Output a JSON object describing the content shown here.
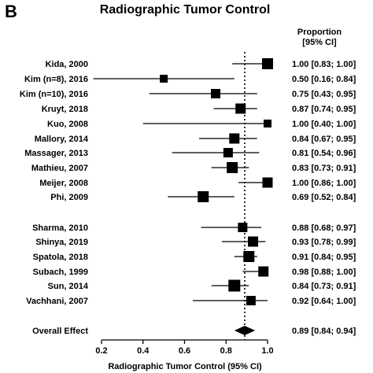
{
  "panel_letter": "B",
  "chart_data": {
    "type": "forest",
    "title": "Radiographic Tumor Control",
    "xlabel": "Radiographic Tumor Control (95% CI)",
    "ci_header": [
      "Proportion",
      "[95% CI]"
    ],
    "xlim": [
      0.2,
      1.0
    ],
    "xticks": [
      0.2,
      0.4,
      0.6,
      0.8,
      1.0
    ],
    "xtick_labels": [
      "0.2",
      "0.4",
      "0.6",
      "0.8",
      "1.0"
    ],
    "reference_line": 0.89,
    "studies": [
      {
        "label": "Kida, 2000",
        "estimate": 1.0,
        "lower": 0.83,
        "upper": 1.0,
        "ci_text": "1.00 [0.83; 1.00]",
        "box": 14
      },
      {
        "label": "Kim (n=8), 2016",
        "estimate": 0.5,
        "lower": 0.16,
        "upper": 0.84,
        "ci_text": "0.50 [0.16; 0.84]",
        "box": 10
      },
      {
        "label": "Kim (n=10), 2016",
        "estimate": 0.75,
        "lower": 0.43,
        "upper": 0.95,
        "ci_text": "0.75 [0.43; 0.95]",
        "box": 12
      },
      {
        "label": "Kruyt, 2018",
        "estimate": 0.87,
        "lower": 0.74,
        "upper": 0.95,
        "ci_text": "0.87 [0.74; 0.95]",
        "box": 13
      },
      {
        "label": "Kuo, 2008",
        "estimate": 1.0,
        "lower": 0.4,
        "upper": 1.0,
        "ci_text": "1.00 [0.40; 1.00]",
        "box": 10
      },
      {
        "label": "Mallory, 2014",
        "estimate": 0.84,
        "lower": 0.67,
        "upper": 0.95,
        "ci_text": "0.84 [0.67; 0.95]",
        "box": 13
      },
      {
        "label": "Massager, 2013",
        "estimate": 0.81,
        "lower": 0.54,
        "upper": 0.96,
        "ci_text": "0.81 [0.54; 0.96]",
        "box": 12
      },
      {
        "label": "Mathieu, 2007",
        "estimate": 0.83,
        "lower": 0.73,
        "upper": 0.91,
        "ci_text": "0.83 [0.73; 0.91]",
        "box": 14
      },
      {
        "label": "Meijer, 2008",
        "estimate": 1.0,
        "lower": 0.86,
        "upper": 1.0,
        "ci_text": "1.00 [0.86; 1.00]",
        "box": 13
      },
      {
        "label": "Phi, 2009",
        "estimate": 0.69,
        "lower": 0.52,
        "upper": 0.84,
        "ci_text": "0.69 [0.52; 0.84]",
        "box": 14
      },
      {
        "label": "Sharma, 2010",
        "estimate": 0.88,
        "lower": 0.68,
        "upper": 0.97,
        "ci_text": "0.88 [0.68; 0.97]",
        "box": 12
      },
      {
        "label": "Shinya, 2019",
        "estimate": 0.93,
        "lower": 0.78,
        "upper": 0.99,
        "ci_text": "0.93 [0.78; 0.99]",
        "box": 13
      },
      {
        "label": "Spatola, 2018",
        "estimate": 0.91,
        "lower": 0.84,
        "upper": 0.95,
        "ci_text": "0.91 [0.84; 0.95]",
        "box": 14
      },
      {
        "label": "Subach, 1999",
        "estimate": 0.98,
        "lower": 0.88,
        "upper": 1.0,
        "ci_text": "0.98 [0.88; 1.00]",
        "box": 13
      },
      {
        "label": "Sun, 2014",
        "estimate": 0.84,
        "lower": 0.73,
        "upper": 0.91,
        "ci_text": "0.84 [0.73; 0.91]",
        "box": 15
      },
      {
        "label": "Vachhani, 2007",
        "estimate": 0.92,
        "lower": 0.64,
        "upper": 1.0,
        "ci_text": "0.92 [0.64; 1.00]",
        "box": 12
      }
    ],
    "overall": {
      "label": "Overall Effect",
      "estimate": 0.89,
      "lower": 0.84,
      "upper": 0.94,
      "ci_text": "0.89 [0.84; 0.94]"
    }
  }
}
